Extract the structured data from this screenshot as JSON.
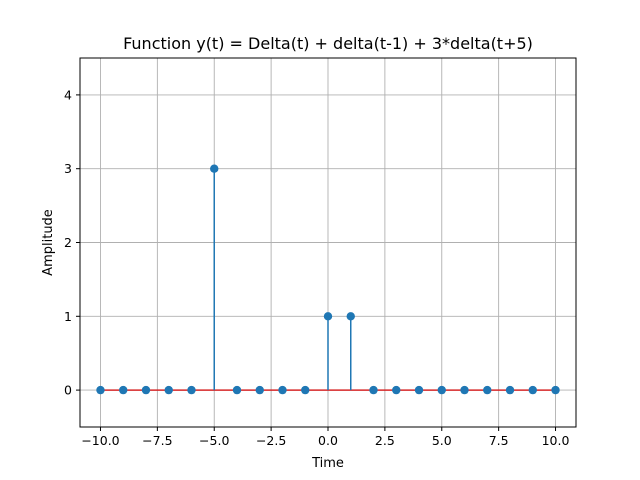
{
  "chart_data": {
    "type": "stem",
    "title": "Function y(t) = Delta(t) + delta(t-1) + 3*delta(t+5)",
    "xlabel": "Time",
    "ylabel": "Amplitude",
    "xlim": [
      -10.9,
      10.9
    ],
    "ylim": [
      -0.5,
      4.5
    ],
    "xticks": [
      -10.0,
      -7.5,
      -5.0,
      -2.5,
      0.0,
      2.5,
      5.0,
      7.5,
      10.0
    ],
    "xtick_labels": [
      "−10.0",
      "−7.5",
      "−5.0",
      "−2.5",
      "0.0",
      "2.5",
      "5.0",
      "7.5",
      "10.0"
    ],
    "yticks": [
      0,
      1,
      2,
      3,
      4
    ],
    "ytick_labels": [
      "0",
      "1",
      "2",
      "3",
      "4"
    ],
    "grid": true,
    "x": [
      -10,
      -9,
      -8,
      -7,
      -6,
      -5,
      -4,
      -3,
      -2,
      -1,
      0,
      1,
      2,
      3,
      4,
      5,
      6,
      7,
      8,
      9,
      10
    ],
    "values": [
      0,
      0,
      0,
      0,
      0,
      3,
      0,
      0,
      0,
      0,
      1,
      1,
      0,
      0,
      0,
      0,
      0,
      0,
      0,
      0,
      0
    ],
    "colors": {
      "stem": "#1f77b4",
      "marker": "#1f77b4",
      "baseline": "#d62728"
    }
  }
}
